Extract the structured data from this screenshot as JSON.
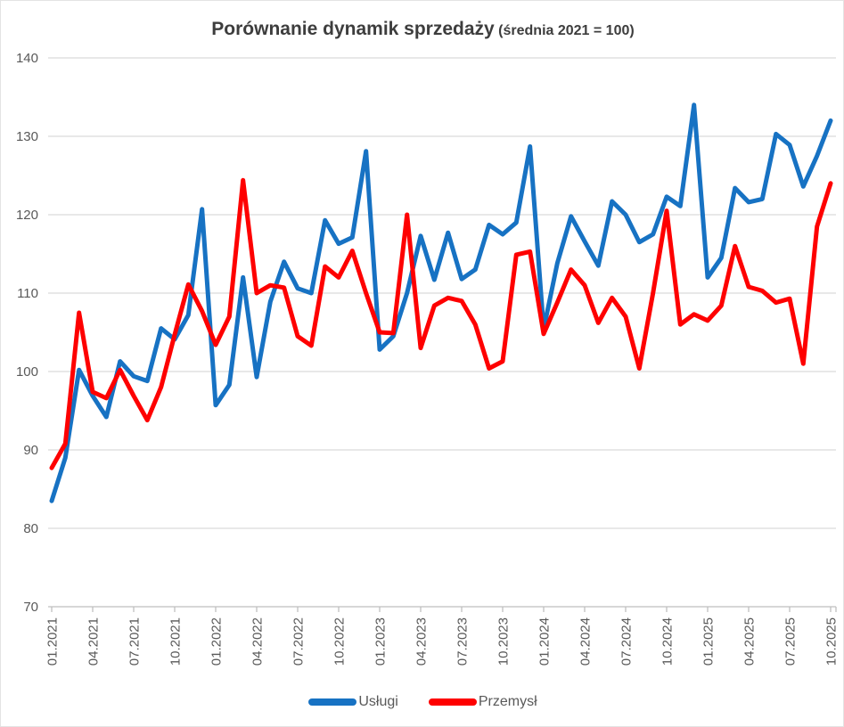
{
  "title": {
    "main": "Porównanie dynamik sprzedaży",
    "suffix": " (średnia 2021 = 100)"
  },
  "legend": {
    "items": [
      {
        "label": "Usługi",
        "color": "#1772c3"
      },
      {
        "label": "Przemysł",
        "color": "#fe0000"
      }
    ]
  },
  "colors": {
    "series_uslugi": "#1772c3",
    "series_przemysl": "#fe0000",
    "gridline": "#d9d9d9",
    "axis_line": "#bfbfbf",
    "tick_text": "#595959",
    "title_text": "#3d3d3d",
    "background": "#ffffff"
  },
  "chart_data": {
    "type": "line",
    "title": "Porównanie dynamik sprzedaży (średnia 2021 = 100)",
    "xlabel": "",
    "ylabel": "",
    "ylim": [
      70,
      140
    ],
    "y_ticks": [
      70,
      80,
      90,
      100,
      110,
      120,
      130,
      140
    ],
    "grid": true,
    "legend_position": "bottom",
    "x_tick_every": 3,
    "x": [
      "01.2021",
      "02.2021",
      "03.2021",
      "04.2021",
      "05.2021",
      "06.2021",
      "07.2021",
      "08.2021",
      "09.2021",
      "10.2021",
      "11.2021",
      "12.2021",
      "01.2022",
      "02.2022",
      "03.2022",
      "04.2022",
      "05.2022",
      "06.2022",
      "07.2022",
      "08.2022",
      "09.2022",
      "10.2022",
      "11.2022",
      "12.2022",
      "01.2023",
      "02.2023",
      "03.2023",
      "04.2023",
      "05.2023",
      "06.2023",
      "07.2023",
      "08.2023",
      "09.2023",
      "10.2023",
      "11.2023",
      "12.2023",
      "01.2024",
      "02.2024",
      "03.2024",
      "04.2024",
      "05.2024",
      "06.2024",
      "07.2024",
      "08.2024",
      "09.2024",
      "10.2024",
      "11.2024",
      "12.2024",
      "01.2025",
      "02.2025",
      "03.2025",
      "04.2025",
      "05.2025",
      "06.2025",
      "07.2025",
      "08.2025",
      "09.2025",
      "10.2025"
    ],
    "x_axis_tick_labels": [
      "01.2021",
      "04.2021",
      "07.2021",
      "10.2021",
      "01.2022",
      "04.2022",
      "07.2022",
      "10.2022",
      "01.2023",
      "04.2023",
      "07.2023",
      "10.2023",
      "01.2024",
      "04.2024",
      "07.2024",
      "10.2024",
      "01.2025",
      "04.2025",
      "07.2025",
      "10.2025"
    ],
    "series": [
      {
        "name": "Usługi",
        "color": "#1772c3",
        "values": [
          83.5,
          89.0,
          100.2,
          96.9,
          94.2,
          101.3,
          99.4,
          98.8,
          105.5,
          104.1,
          107.2,
          120.7,
          95.7,
          98.3,
          112.0,
          99.3,
          108.9,
          114.0,
          110.6,
          110.0,
          119.3,
          116.3,
          117.1,
          128.1,
          102.8,
          104.5,
          110.0,
          117.3,
          111.7,
          117.7,
          111.8,
          113.0,
          118.7,
          117.5,
          119.0,
          128.7,
          105.4,
          113.8,
          119.8,
          116.6,
          113.5,
          121.7,
          120.0,
          116.5,
          117.5,
          122.3,
          121.1,
          134.0,
          112.0,
          114.5,
          123.4,
          121.6,
          122.0,
          130.3,
          128.9,
          123.6,
          127.5,
          132.0
        ]
      },
      {
        "name": "Przemysł",
        "color": "#fe0000",
        "values": [
          87.7,
          90.8,
          107.5,
          97.4,
          96.6,
          100.2,
          96.9,
          93.8,
          98.0,
          104.7,
          111.1,
          107.7,
          103.4,
          107.0,
          124.4,
          110.0,
          111.0,
          110.7,
          104.5,
          103.3,
          113.4,
          112.0,
          115.4,
          110.0,
          105.0,
          104.9,
          120.0,
          103.0,
          108.4,
          109.4,
          109.0,
          106.0,
          100.4,
          101.3,
          114.9,
          115.3,
          104.8,
          108.8,
          113.0,
          111.0,
          106.2,
          109.4,
          107.0,
          100.4,
          110.0,
          120.5,
          106.0,
          107.3,
          106.5,
          108.4,
          116.0,
          110.8,
          110.3,
          108.8,
          109.3,
          101.0,
          118.5,
          124.0
        ]
      }
    ]
  }
}
